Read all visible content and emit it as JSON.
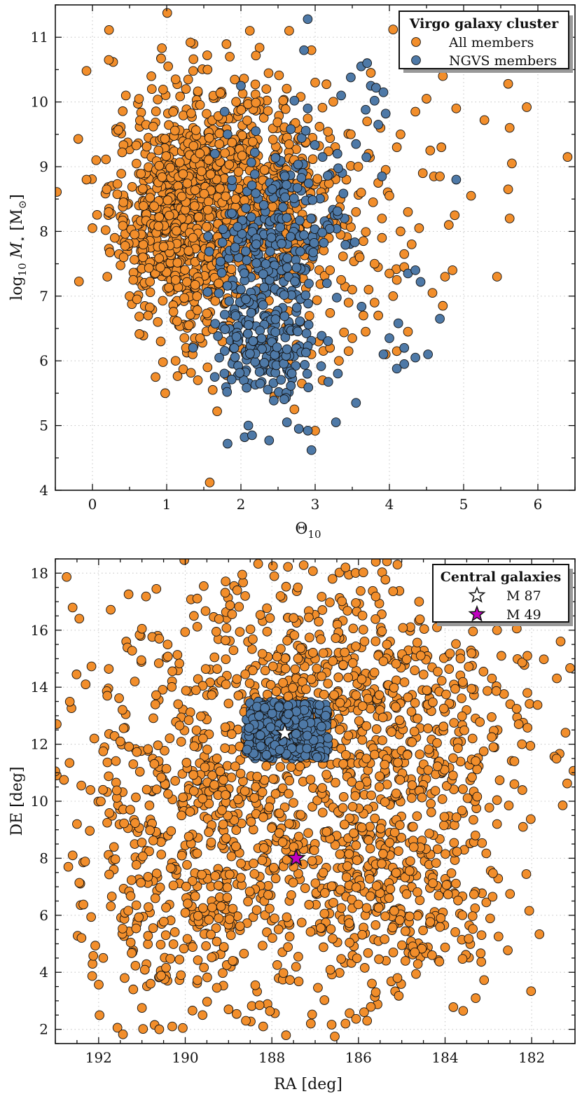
{
  "colors": {
    "all_members": "#f28e2b",
    "ngvs_members": "#4e79a7",
    "m87": "#ffffff",
    "m49": "#c000c0",
    "marker_edge": "#111111"
  },
  "chart_data": [
    {
      "type": "scatter",
      "title": "",
      "xlabel": "Θ",
      "xlabel_sub": "10",
      "ylabel_prefix": "log",
      "ylabel_sub": "10",
      "ylabel_var": "M",
      "ylabel_var_sub": "⋆",
      "ylabel_unit": "[M",
      "ylabel_unit_sub": "⊙",
      "ylabel_unit_end": "]",
      "xlim": [
        -0.5,
        6.5
      ],
      "ylim": [
        4,
        11.5
      ],
      "xticks": [
        0,
        1,
        2,
        3,
        4,
        5,
        6
      ],
      "yticks": [
        4,
        5,
        6,
        7,
        8,
        9,
        10,
        11
      ],
      "grid": true,
      "legend": {
        "placement": "top-right",
        "title": "Virgo galaxy cluster",
        "entries": [
          "All members",
          "NGVS members"
        ]
      },
      "series": [
        {
          "name": "All members",
          "points": [
            [
              -0.08,
              10.48
            ],
            [
              0.22,
              10.65
            ],
            [
              0.45,
              10.1
            ],
            [
              0.8,
              10.2
            ],
            [
              1.02,
              10.55
            ],
            [
              1.32,
              10.92
            ],
            [
              1.12,
              10.35
            ],
            [
              1.55,
              10.5
            ],
            [
              1.85,
              10.7
            ],
            [
              2.12,
              11.1
            ],
            [
              2.65,
              11.1
            ],
            [
              2.95,
              10.8
            ],
            [
              3.0,
              10.3
            ],
            [
              3.75,
              10.45
            ],
            [
              4.05,
              11.12
            ],
            [
              4.5,
              10.05
            ],
            [
              4.72,
              10.4
            ],
            [
              5.6,
              10.28
            ],
            [
              -0.08,
              8.8
            ],
            [
              0.05,
              9.1
            ],
            [
              0.0,
              8.05
            ],
            [
              0.2,
              7.3
            ],
            [
              0.3,
              7.9
            ],
            [
              0.42,
              7.6
            ],
            [
              0.5,
              7.0
            ],
            [
              0.55,
              7.25
            ],
            [
              0.6,
              6.95
            ],
            [
              0.68,
              7.6
            ],
            [
              0.75,
              6.7
            ],
            [
              0.88,
              6.6
            ],
            [
              0.92,
              6.3
            ],
            [
              0.98,
              5.5
            ],
            [
              1.12,
              6.0
            ],
            [
              0.85,
              5.75
            ],
            [
              0.95,
              5.98
            ],
            [
              1.35,
              6.1
            ],
            [
              1.45,
              6.35
            ],
            [
              1.55,
              5.9
            ],
            [
              1.62,
              5.55
            ],
            [
              1.68,
              5.22
            ],
            [
              1.58,
              4.12
            ],
            [
              1.75,
              6.3
            ],
            [
              1.3,
              6.55
            ],
            [
              1.8,
              6.9
            ],
            [
              2.72,
              5.25
            ],
            [
              2.45,
              5.45
            ],
            [
              2.65,
              5.95
            ],
            [
              2.75,
              6.25
            ],
            [
              2.95,
              6.1
            ],
            [
              3.1,
              5.7
            ],
            [
              3.0,
              4.92
            ],
            [
              2.82,
              5.65
            ],
            [
              3.2,
              6.2
            ],
            [
              3.32,
              6.0
            ],
            [
              3.45,
              6.15
            ],
            [
              3.5,
              6.35
            ],
            [
              3.68,
              6.45
            ],
            [
              3.2,
              7.4
            ],
            [
              3.35,
              7.25
            ],
            [
              3.5,
              7.1
            ],
            [
              3.6,
              7.6
            ],
            [
              3.72,
              7.1
            ],
            [
              3.65,
              7.85
            ],
            [
              3.8,
              7.5
            ],
            [
              3.9,
              7.9
            ],
            [
              3.55,
              8.3
            ],
            [
              3.62,
              8.6
            ],
            [
              3.78,
              8.45
            ],
            [
              3.85,
              8.75
            ],
            [
              3.95,
              8.95
            ],
            [
              3.9,
              8.2
            ],
            [
              3.42,
              8.8
            ],
            [
              3.58,
              9.0
            ],
            [
              3.72,
              9.2
            ],
            [
              3.48,
              9.5
            ],
            [
              3.7,
              9.7
            ],
            [
              3.88,
              9.6
            ],
            [
              4.05,
              7.0
            ],
            [
              4.1,
              7.25
            ],
            [
              4.2,
              7.65
            ],
            [
              4.3,
              7.8
            ],
            [
              4.15,
              8.0
            ],
            [
              4.25,
              8.3
            ],
            [
              4.0,
              8.55
            ],
            [
              4.4,
              8.05
            ],
            [
              4.45,
              8.9
            ],
            [
              4.6,
              8.85
            ],
            [
              4.55,
              9.25
            ],
            [
              4.1,
              9.3
            ],
            [
              4.15,
              9.5
            ],
            [
              4.35,
              9.85
            ],
            [
              4.7,
              9.3
            ],
            [
              4.68,
              8.85
            ],
            [
              4.58,
              7.05
            ],
            [
              4.75,
              7.3
            ],
            [
              4.85,
              7.4
            ],
            [
              4.8,
              8.1
            ],
            [
              4.88,
              8.25
            ],
            [
              4.72,
              6.85
            ],
            [
              4.2,
              7.45
            ],
            [
              5.1,
              8.55
            ],
            [
              5.45,
              7.3
            ],
            [
              5.62,
              8.2
            ],
            [
              5.6,
              8.65
            ],
            [
              5.65,
              9.05
            ],
            [
              5.62,
              9.6
            ],
            [
              5.28,
              9.72
            ],
            [
              5.85,
              9.92
            ],
            [
              6.4,
              9.15
            ],
            [
              4.9,
              9.9
            ],
            [
              4.25,
              6.45
            ],
            [
              4.1,
              6.15
            ],
            [
              3.95,
              6.1
            ],
            [
              3.65,
              6.7
            ],
            [
              3.45,
              6.9
            ],
            [
              3.8,
              6.9
            ],
            [
              3.85,
              6.7
            ],
            [
              4.0,
              7.35
            ]
          ],
          "clusters": [
            {
              "cx": 1.2,
              "cy": 8.3,
              "sx": 0.48,
              "sy": 0.85,
              "n": 650
            },
            {
              "cx": 1.8,
              "cy": 8.6,
              "sx": 0.5,
              "sy": 0.95,
              "n": 260
            },
            {
              "cx": 2.4,
              "cy": 8.8,
              "sx": 0.5,
              "sy": 0.8,
              "n": 170
            },
            {
              "cx": 3.0,
              "cy": 8.3,
              "sx": 0.4,
              "sy": 0.9,
              "n": 90
            },
            {
              "cx": 1.6,
              "cy": 6.8,
              "sx": 0.35,
              "sy": 0.45,
              "n": 40
            }
          ]
        },
        {
          "name": "NGVS members",
          "points": [
            [
              1.82,
              4.72
            ],
            [
              2.05,
              4.82
            ],
            [
              2.15,
              4.85
            ],
            [
              2.1,
              5.0
            ],
            [
              2.38,
              4.77
            ],
            [
              2.62,
              5.05
            ],
            [
              2.78,
              4.95
            ],
            [
              2.95,
              4.62
            ],
            [
              3.28,
              5.05
            ],
            [
              3.55,
              5.35
            ],
            [
              4.2,
              5.95
            ],
            [
              4.1,
              5.88
            ],
            [
              4.35,
              6.05
            ],
            [
              4.52,
              6.1
            ],
            [
              4.0,
              6.35
            ],
            [
              4.2,
              6.2
            ],
            [
              4.12,
              6.58
            ],
            [
              3.92,
              6.1
            ],
            [
              4.25,
              7.35
            ],
            [
              4.35,
              7.4
            ],
            [
              4.42,
              7.22
            ],
            [
              4.68,
              6.65
            ],
            [
              4.9,
              8.8
            ],
            [
              3.9,
              8.85
            ],
            [
              3.85,
              9.65
            ],
            [
              3.95,
              9.82
            ],
            [
              3.62,
              10.55
            ],
            [
              3.7,
              10.6
            ],
            [
              3.48,
              10.38
            ],
            [
              3.75,
              10.25
            ],
            [
              3.82,
              10.22
            ],
            [
              3.8,
              10.02
            ],
            [
              3.92,
              10.15
            ],
            [
              3.68,
              9.88
            ],
            [
              2.9,
              11.28
            ],
            [
              2.85,
              10.8
            ],
            [
              3.35,
              10.1
            ],
            [
              2.72,
              10.02
            ],
            [
              2.9,
              9.9
            ],
            [
              2.0,
              10.25
            ],
            [
              1.78,
              9.85
            ],
            [
              1.82,
              9.5
            ],
            [
              1.65,
              9.2
            ],
            [
              2.2,
              9.55
            ],
            [
              3.3,
              9.2
            ],
            [
              3.55,
              9.35
            ],
            [
              3.1,
              9.15
            ]
          ],
          "clusters": [
            {
              "cx": 2.4,
              "cy": 7.4,
              "sx": 0.42,
              "sy": 0.75,
              "n": 240
            },
            {
              "cx": 2.3,
              "cy": 6.1,
              "sx": 0.38,
              "sy": 0.42,
              "n": 120
            },
            {
              "cx": 2.7,
              "cy": 8.4,
              "sx": 0.4,
              "sy": 0.55,
              "n": 60
            }
          ]
        }
      ]
    },
    {
      "type": "scatter",
      "title": "",
      "xlabel": "RA [deg]",
      "ylabel": "DE [deg]",
      "xlim": [
        193.0,
        181.0
      ],
      "ylim": [
        1.5,
        18.5
      ],
      "xticks": [
        192,
        190,
        188,
        186,
        184,
        182
      ],
      "yticks": [
        2,
        4,
        6,
        8,
        10,
        12,
        14,
        16,
        18
      ],
      "grid": true,
      "legend": {
        "placement": "top-right",
        "title": "Central galaxies",
        "entries": [
          "M 87",
          "M 49"
        ]
      },
      "series": [
        {
          "name": "All members",
          "points": [
            [
              193.0,
              11.05
            ],
            [
              192.8,
              10.75
            ],
            [
              192.4,
              10.55
            ],
            [
              191.9,
              10.4
            ],
            [
              192.3,
              14.1
            ],
            [
              191.8,
              13.7
            ],
            [
              192.1,
              12.2
            ],
            [
              191.5,
              12.1
            ],
            [
              191.2,
              11.3
            ],
            [
              191.0,
              16.05
            ],
            [
              190.6,
              15.7
            ],
            [
              189.8,
              16.5
            ],
            [
              188.8,
              17.4
            ],
            [
              187.8,
              17.2
            ],
            [
              187.4,
              17.5
            ],
            [
              186.6,
              17.8
            ],
            [
              186.3,
              18.2
            ],
            [
              185.6,
              18.4
            ],
            [
              185.1,
              18.3
            ],
            [
              184.6,
              17.0
            ],
            [
              184.0,
              16.8
            ],
            [
              183.4,
              16.6
            ],
            [
              182.8,
              16.0
            ],
            [
              182.7,
              15.1
            ],
            [
              182.1,
              15.1
            ],
            [
              182.1,
              13.8
            ],
            [
              182.3,
              12.7
            ],
            [
              182.4,
              11.4
            ],
            [
              182.4,
              10.6
            ],
            [
              182.2,
              9.1
            ],
            [
              182.8,
              9.2
            ],
            [
              183.3,
              8.8
            ],
            [
              182.5,
              6.75
            ],
            [
              183.6,
              6.0
            ],
            [
              184.1,
              5.9
            ],
            [
              184.3,
              4.6
            ],
            [
              184.7,
              4.7
            ],
            [
              185.1,
              3.8
            ],
            [
              185.6,
              3.3
            ],
            [
              186.3,
              2.2
            ],
            [
              185.8,
              2.3
            ],
            [
              187.1,
              2.2
            ],
            [
              188.2,
              2.1
            ],
            [
              188.6,
              2.3
            ],
            [
              190.3,
              2.1
            ],
            [
              190.6,
              2.0
            ],
            [
              191.0,
              2.75
            ],
            [
              191.2,
              3.4
            ],
            [
              191.4,
              3.8
            ],
            [
              190.8,
              3.6
            ],
            [
              190.1,
              3.9
            ],
            [
              189.6,
              2.5
            ],
            [
              189.0,
              2.7
            ],
            [
              192.5,
              9.2
            ],
            [
              192.6,
              8.1
            ],
            [
              192.7,
              7.7
            ]
          ],
          "clusters": [
            {
              "cx": 187.2,
              "cy": 10.5,
              "sx": 2.4,
              "sy": 3.8,
              "n": 900
            },
            {
              "cx": 185.3,
              "cy": 6.5,
              "sx": 1.1,
              "sy": 1.6,
              "n": 160
            },
            {
              "cx": 189.5,
              "cy": 9.0,
              "sx": 1.6,
              "sy": 3.4,
              "n": 260
            },
            {
              "cx": 184.5,
              "cy": 12.5,
              "sx": 1.3,
              "sy": 2.6,
              "n": 200
            },
            {
              "cx": 186.5,
              "cy": 15.0,
              "sx": 1.6,
              "sy": 1.4,
              "n": 150
            },
            {
              "cx": 190.5,
              "cy": 5.5,
              "sx": 1.0,
              "sy": 1.8,
              "n": 90
            }
          ]
        },
        {
          "name": "NGVS members",
          "region": {
            "ra": [
              188.6,
              186.7
            ],
            "de": [
              11.5,
              13.5
            ]
          },
          "n": 360,
          "points": []
        },
        {
          "name": "M 87",
          "points": [
            [
              187.7,
              12.39
            ]
          ]
        },
        {
          "name": "M 49",
          "points": [
            [
              187.44,
              8.0
            ]
          ]
        }
      ]
    }
  ]
}
